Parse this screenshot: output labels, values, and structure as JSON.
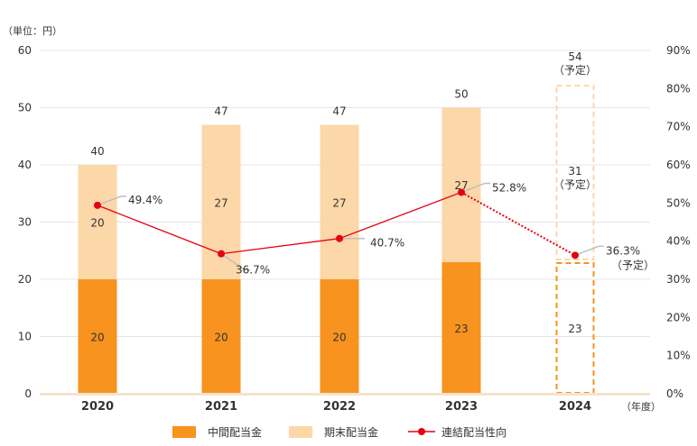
{
  "chart_data": {
    "type": "bar",
    "stacked": true,
    "unit_label": "（単位：円）",
    "x_unit_label": "（年度）",
    "categories": [
      "2020",
      "2021",
      "2022",
      "2023",
      "2024"
    ],
    "series": [
      {
        "name": "中間配当金",
        "kind": "bar",
        "axis": "left",
        "values": [
          20,
          20,
          20,
          23,
          23
        ],
        "labels": [
          "20",
          "20",
          "20",
          "23",
          "23"
        ],
        "color": "#F7931E"
      },
      {
        "name": "期末配当金",
        "kind": "bar",
        "axis": "left",
        "values": [
          20,
          27,
          27,
          27,
          31
        ],
        "labels": [
          "20",
          "27",
          "27",
          "27",
          "31"
        ],
        "color": "#FCD7A8"
      },
      {
        "name": "連結配当性向",
        "kind": "line",
        "axis": "right",
        "values": [
          49.4,
          36.7,
          40.7,
          52.8,
          36.3
        ],
        "labels": [
          "49.4%",
          "36.7%",
          "40.7%",
          "52.8%",
          "36.3%"
        ],
        "color": "#E60012"
      }
    ],
    "totals": [
      "40",
      "47",
      "47",
      "50",
      "54"
    ],
    "planned_note": "（予定）",
    "planned_category": "2024",
    "y_left": {
      "min": 0,
      "max": 60,
      "ticks": [
        "0",
        "10",
        "20",
        "30",
        "40",
        "50",
        "60"
      ]
    },
    "y_right": {
      "min": 0,
      "max": 90,
      "ticks": [
        "0%",
        "10%",
        "20%",
        "30%",
        "40%",
        "50%",
        "60%",
        "70%",
        "80%",
        "90%"
      ]
    },
    "grid": true,
    "legend_position": "bottom"
  }
}
